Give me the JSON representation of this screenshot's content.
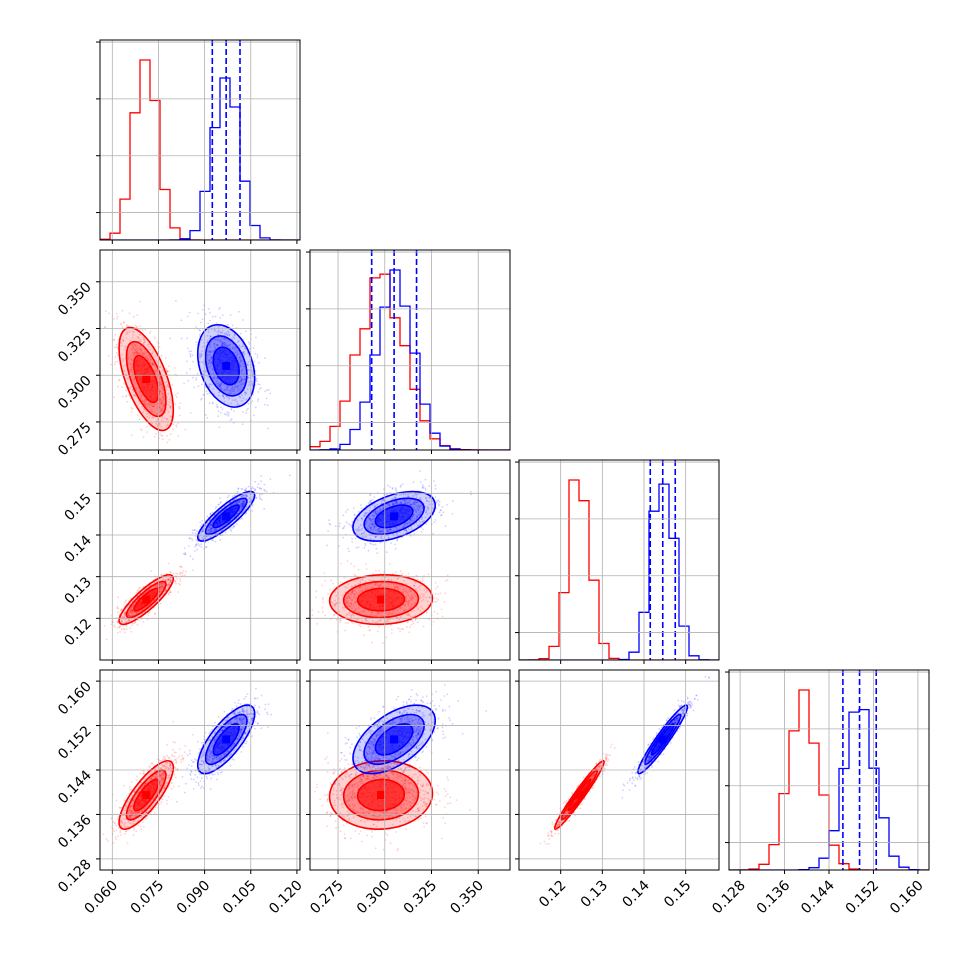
{
  "chart_data": {
    "type": "corner",
    "title": "",
    "grid": true,
    "colors": {
      "series_a": "#ff0000",
      "series_b": "#0000ff"
    },
    "series": [
      {
        "color": "#ff0000",
        "mean": [
          0.071,
          0.298,
          0.1245,
          0.1395
        ],
        "std": [
          0.004,
          0.0125,
          0.0027,
          0.0028
        ],
        "quantile_lines": false
      },
      {
        "color": "#0000ff",
        "mean": [
          0.097,
          0.305,
          0.1445,
          0.1495
        ],
        "std": [
          0.0042,
          0.01,
          0.0027,
          0.0028
        ],
        "quantile_lines": true,
        "quantiles": [
          [
            0.0925,
            0.097,
            0.1015
          ],
          [
            0.293,
            0.305,
            0.317
          ],
          [
            0.1415,
            0.1445,
            0.1475
          ],
          [
            0.1465,
            0.1495,
            0.1525
          ]
        ]
      }
    ],
    "ranges": [
      [
        0.056,
        0.121
      ],
      [
        0.26,
        0.367
      ],
      [
        0.11,
        0.158
      ],
      [
        0.126,
        0.162
      ]
    ],
    "ticks": [
      {
        "values": [
          0.06,
          0.075,
          0.09,
          0.105,
          0.12
        ],
        "labels": [
          "0.060",
          "0.075",
          "0.090",
          "0.105",
          "0.120"
        ]
      },
      {
        "values": [
          0.275,
          0.3,
          0.325,
          0.35
        ],
        "labels": [
          "0.275",
          "0.300",
          "0.325",
          "0.350"
        ]
      },
      {
        "values": [
          0.12,
          0.13,
          0.14,
          0.15
        ],
        "labels": [
          "0.12",
          "0.13",
          "0.14",
          "0.15"
        ]
      },
      {
        "values": [
          0.128,
          0.136,
          0.144,
          0.152,
          0.16
        ],
        "labels": [
          "0.128",
          "0.136",
          "0.144",
          "0.152",
          "0.160"
        ]
      }
    ],
    "correlations": [
      [
        0,
        1,
        "-0.6",
        "-0.3"
      ],
      [
        0,
        2,
        "0.85",
        "0.85"
      ],
      [
        0,
        3,
        "0.8",
        "0.75"
      ],
      [
        1,
        2,
        "0.05",
        "0.45"
      ],
      [
        1,
        3,
        "0.05",
        "0.55"
      ],
      [
        2,
        3,
        "0.97",
        "0.95"
      ]
    ]
  }
}
